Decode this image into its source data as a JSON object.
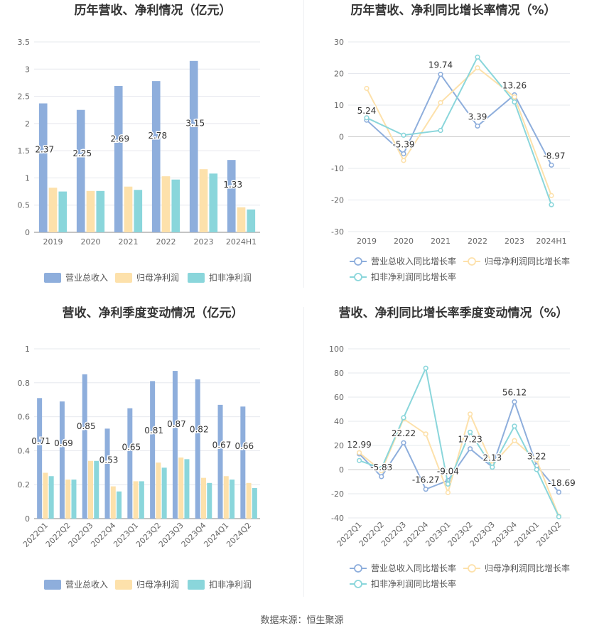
{
  "source_label": "数据来源：恒生聚源",
  "colors": {
    "revenue": "#8eaedc",
    "net_profit": "#fde1ab",
    "deducted_profit": "#8ad6db",
    "axis_text": "#666666",
    "grid": "#e6e8ee",
    "title": "#333333"
  },
  "chart_data": [
    {
      "type": "bar",
      "title": "历年营收、净利情况（亿元）",
      "categories": [
        "2019",
        "2020",
        "2021",
        "2022",
        "2023",
        "2024H1"
      ],
      "ylim": [
        0,
        3.5
      ],
      "yticks": [
        0,
        0.5,
        1,
        1.5,
        2,
        2.5,
        3,
        3.5
      ],
      "series": [
        {
          "name": "营业总收入",
          "values": [
            2.37,
            2.25,
            2.69,
            2.78,
            3.15,
            1.33
          ],
          "labels": [
            "2.37",
            "2.25",
            "2.69",
            "2.78",
            "3.15",
            "1.33"
          ]
        },
        {
          "name": "归母净利润",
          "values": [
            0.82,
            0.76,
            0.84,
            1.03,
            1.16,
            0.46
          ]
        },
        {
          "name": "扣非净利润",
          "values": [
            0.75,
            0.76,
            0.78,
            0.97,
            1.08,
            0.42
          ]
        }
      ],
      "legend": "bottom"
    },
    {
      "type": "line",
      "title": "历年营收、净利同比增长率情况（%）",
      "categories": [
        "2019",
        "2020",
        "2021",
        "2022",
        "2023",
        "2024H1"
      ],
      "ylim": [
        -30,
        30
      ],
      "yticks": [
        -30,
        -20,
        -10,
        0,
        10,
        20,
        30
      ],
      "series": [
        {
          "name": "营业总收入同比增长率",
          "values": [
            5.24,
            -5.39,
            19.74,
            3.39,
            13.26,
            -8.97
          ],
          "labels": [
            "5.24",
            "-5.39",
            "19.74",
            "3.39",
            "13.26",
            "-8.97"
          ]
        },
        {
          "name": "归母净利润同比增长率",
          "values": [
            15.3,
            -7.5,
            10.8,
            21.8,
            12.6,
            -18.6
          ]
        },
        {
          "name": "扣非净利润同比增长率",
          "values": [
            6.0,
            0.5,
            2.0,
            25.2,
            11.0,
            -21.5
          ]
        }
      ],
      "legend": "bottom"
    },
    {
      "type": "bar",
      "title": "营收、净利季度变动情况（亿元）",
      "categories": [
        "2022Q1",
        "2022Q2",
        "2022Q3",
        "2022Q4",
        "2023Q1",
        "2023Q2",
        "2023Q3",
        "2023Q4",
        "2024Q1",
        "2024Q2"
      ],
      "ylim": [
        0,
        1
      ],
      "yticks": [
        0,
        0.2,
        0.4,
        0.6,
        0.8,
        1
      ],
      "series": [
        {
          "name": "营业总收入",
          "values": [
            0.71,
            0.69,
            0.85,
            0.53,
            0.65,
            0.81,
            0.87,
            0.82,
            0.67,
            0.66
          ],
          "labels": [
            "0.71",
            "0.69",
            "0.85",
            "0.53",
            "0.65",
            "0.81",
            "0.87",
            "0.82",
            "0.67",
            "0.66"
          ]
        },
        {
          "name": "归母净利润",
          "values": [
            0.27,
            0.23,
            0.34,
            0.19,
            0.22,
            0.33,
            0.36,
            0.24,
            0.25,
            0.21
          ]
        },
        {
          "name": "扣非净利润",
          "values": [
            0.25,
            0.23,
            0.34,
            0.16,
            0.22,
            0.3,
            0.35,
            0.21,
            0.23,
            0.18
          ]
        }
      ],
      "legend": "bottom"
    },
    {
      "type": "line",
      "title": "营收、净利同比增长率季度变动情况（%）",
      "categories": [
        "2022Q1",
        "2022Q2",
        "2022Q3",
        "2022Q4",
        "2023Q1",
        "2023Q2",
        "2023Q3",
        "2023Q4",
        "2024Q1",
        "2024Q2"
      ],
      "ylim": [
        -40,
        100
      ],
      "yticks": [
        -40,
        -20,
        0,
        20,
        40,
        60,
        80,
        100
      ],
      "series": [
        {
          "name": "营业总收入同比增长率",
          "values": [
            12.99,
            -5.83,
            22.22,
            -16.27,
            -9.04,
            17.23,
            2.13,
            56.12,
            3.22,
            -18.69
          ],
          "labels": [
            "12.99",
            "-5.83",
            "22.22",
            "-16.27",
            "-9.04",
            "17.23",
            "2.13",
            "56.12",
            "3.22",
            "-18.69"
          ]
        },
        {
          "name": "归母净利润同比增长率",
          "values": [
            14.0,
            -1.0,
            42.0,
            29.5,
            -19.0,
            46.0,
            4.0,
            24.0,
            8.0,
            -38.5
          ]
        },
        {
          "name": "扣非净利润同比增长率",
          "values": [
            7.5,
            1.0,
            43.0,
            84.0,
            -12.0,
            31.0,
            2.0,
            36.0,
            0.0,
            -39.0
          ]
        }
      ],
      "legend": "bottom"
    }
  ]
}
